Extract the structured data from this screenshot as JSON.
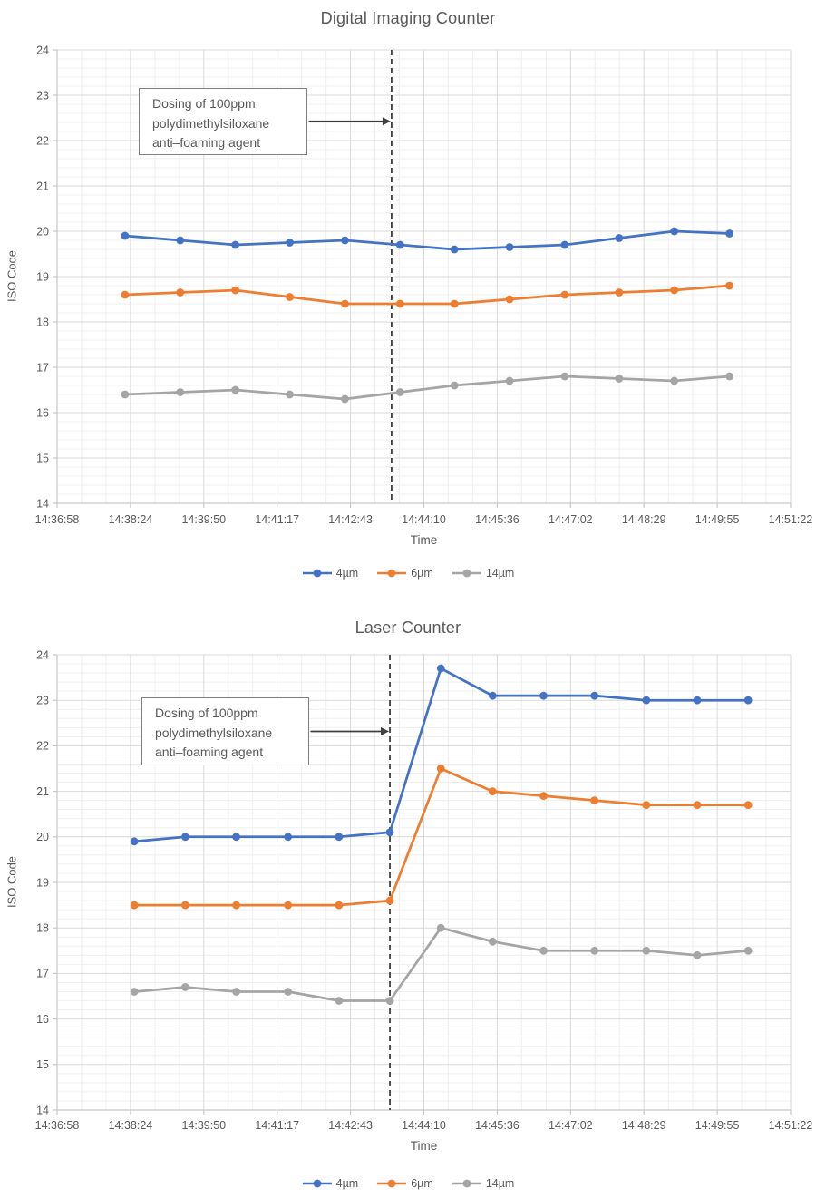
{
  "colors": {
    "background": "#ffffff",
    "grid_major": "#d9d9d9",
    "grid_minor": "#efefef",
    "axis_line": "#c8c8c8",
    "text": "#595959",
    "event_line": "#404040",
    "annotation_border": "#7f7f7f"
  },
  "chart_data": [
    {
      "type": "line",
      "title": "Digital Imaging Counter",
      "xlabel": "Time",
      "ylabel": "ISO Code",
      "ylim": [
        14,
        24
      ],
      "y_major_step": 1,
      "y_minor_step": 0.2,
      "x_range_seconds": [
        0,
        864
      ],
      "x_tick_labels": [
        "14:36:58",
        "14:38:24",
        "14:39:50",
        "14:41:17",
        "14:42:43",
        "14:44:10",
        "14:45:36",
        "14:47:02",
        "14:48:29",
        "14:49:55",
        "14:51:22"
      ],
      "x_minor_divisions_per_major": 3,
      "grid": true,
      "legend_position": "bottom",
      "event_line_seconds": 394,
      "annotation": {
        "lines": [
          "Dosing of 100ppm",
          "polydimethylsiloxane",
          "anti–foaming agent"
        ]
      },
      "series": [
        {
          "name": "4µm",
          "color": "#4472C4",
          "x_seconds": [
            80,
            145,
            210,
            274,
            339,
            404,
            468,
            533,
            598,
            662,
            727,
            792
          ],
          "values": [
            19.9,
            19.8,
            19.7,
            19.75,
            19.8,
            19.7,
            19.6,
            19.65,
            19.7,
            19.85,
            20.0,
            19.95
          ]
        },
        {
          "name": "6µm",
          "color": "#ED7D31",
          "x_seconds": [
            80,
            145,
            210,
            274,
            339,
            404,
            468,
            533,
            598,
            662,
            727,
            792
          ],
          "values": [
            18.6,
            18.65,
            18.7,
            18.55,
            18.4,
            18.4,
            18.4,
            18.5,
            18.6,
            18.65,
            18.7,
            18.8
          ]
        },
        {
          "name": "14µm",
          "color": "#A5A5A5",
          "x_seconds": [
            80,
            145,
            210,
            274,
            339,
            404,
            468,
            533,
            598,
            662,
            727,
            792
          ],
          "values": [
            16.4,
            16.45,
            16.5,
            16.4,
            16.3,
            16.45,
            16.6,
            16.7,
            16.8,
            16.75,
            16.7,
            16.8
          ]
        }
      ]
    },
    {
      "type": "line",
      "title": "Laser Counter",
      "xlabel": "Time",
      "ylabel": "ISO Code",
      "ylim": [
        14,
        24
      ],
      "y_major_step": 1,
      "y_minor_step": 0.2,
      "x_range_seconds": [
        0,
        864
      ],
      "x_tick_labels": [
        "14:36:58",
        "14:38:24",
        "14:39:50",
        "14:41:17",
        "14:42:43",
        "14:44:10",
        "14:45:36",
        "14:47:02",
        "14:48:29",
        "14:49:55",
        "14:51:22"
      ],
      "x_minor_divisions_per_major": 3,
      "grid": true,
      "legend_position": "bottom",
      "event_line_seconds": 392,
      "annotation": {
        "lines": [
          "Dosing of 100ppm",
          "polydimethylsiloxane",
          "anti–foaming agent"
        ]
      },
      "series": [
        {
          "name": "4µm",
          "color": "#4472C4",
          "x_seconds": [
            91,
            151,
            211,
            272,
            332,
            392,
            452,
            513,
            573,
            633,
            694,
            754,
            814
          ],
          "values": [
            19.9,
            20.0,
            20.0,
            20.0,
            20.0,
            20.1,
            23.7,
            23.1,
            23.1,
            23.1,
            23.0,
            23.0,
            23.0
          ]
        },
        {
          "name": "6µm",
          "color": "#ED7D31",
          "x_seconds": [
            91,
            151,
            211,
            272,
            332,
            392,
            452,
            513,
            573,
            633,
            694,
            754,
            814
          ],
          "values": [
            18.5,
            18.5,
            18.5,
            18.5,
            18.5,
            18.6,
            21.5,
            21.0,
            20.9,
            20.8,
            20.7,
            20.7,
            20.7
          ]
        },
        {
          "name": "14µm",
          "color": "#A5A5A5",
          "x_seconds": [
            91,
            151,
            211,
            272,
            332,
            392,
            452,
            513,
            573,
            633,
            694,
            754,
            814
          ],
          "values": [
            16.6,
            16.7,
            16.6,
            16.6,
            16.4,
            16.4,
            18.0,
            17.7,
            17.5,
            17.5,
            17.5,
            17.4,
            17.5
          ]
        }
      ]
    }
  ]
}
